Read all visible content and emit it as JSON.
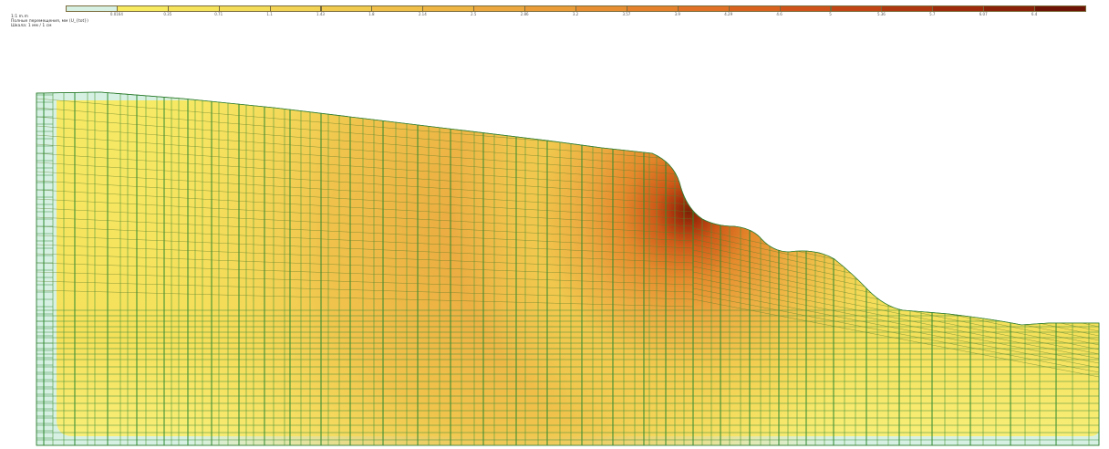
{
  "legend": {
    "ticks": [
      "0.0164",
      "0.35",
      "0.71",
      "1.1",
      "1.43",
      "1.8",
      "2.14",
      "2.5",
      "2.86",
      "3.2",
      "3.57",
      "3.9",
      "4.29",
      "4.6",
      "5",
      "5.36",
      "5.7",
      "6.07",
      "6.4"
    ],
    "colors": [
      "#d6f1e4",
      "#f7ea60",
      "#f5e35c",
      "#f3dc58",
      "#f2d353",
      "#f0ca4e",
      "#efbf49",
      "#eeb444",
      "#eca83e",
      "#ea9c38",
      "#e88e32",
      "#e5802c",
      "#e07126",
      "#d9621f",
      "#cf531a",
      "#c14515",
      "#b03810",
      "#9e2c0c",
      "#8a2209",
      "#6e1406"
    ]
  },
  "caption": {
    "line1": "1:1 m.m",
    "line2": "Полные перемещения, мм (U_{tot})",
    "line3": "Шкала: 1 мм / 1 см"
  }
}
